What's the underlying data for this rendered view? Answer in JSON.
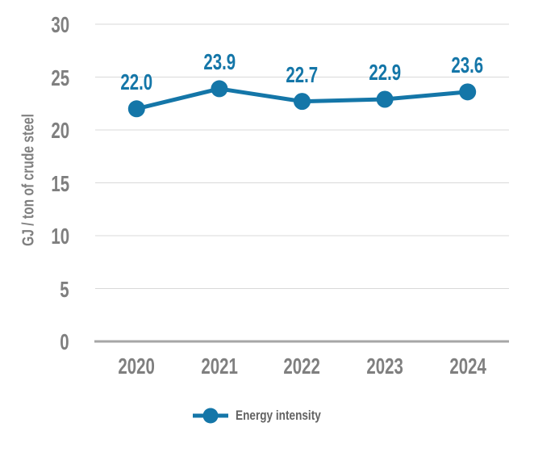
{
  "chart_data": {
    "type": "line",
    "title": "",
    "xlabel": "",
    "ylabel": "GJ / ton of crude steel",
    "categories": [
      "2020",
      "2021",
      "2022",
      "2023",
      "2024"
    ],
    "series": [
      {
        "name": "Energy intensity",
        "values": [
          22.0,
          23.9,
          22.7,
          22.9,
          23.6
        ]
      }
    ],
    "data_labels": [
      "22.0",
      "23.9",
      "22.7",
      "22.9",
      "23.6"
    ],
    "y_ticks": [
      "0",
      "5",
      "10",
      "15",
      "20",
      "25",
      "30"
    ],
    "y_tick_values": [
      0,
      5,
      10,
      15,
      20,
      25,
      30
    ],
    "ylim": [
      0,
      30
    ],
    "grid": "horizontal",
    "legend_position": "bottom",
    "legend": [
      {
        "label": "Energy intensity",
        "marker": "circle-on-line"
      }
    ],
    "colors": {
      "series": "#1476a8",
      "data_label": "#1476a8",
      "axis_text": "#7f7f7f",
      "legend_text": "#636363",
      "axis_line": "#a6a6a6",
      "gridline": "#d9d9d9",
      "background": "#ffffff"
    }
  }
}
